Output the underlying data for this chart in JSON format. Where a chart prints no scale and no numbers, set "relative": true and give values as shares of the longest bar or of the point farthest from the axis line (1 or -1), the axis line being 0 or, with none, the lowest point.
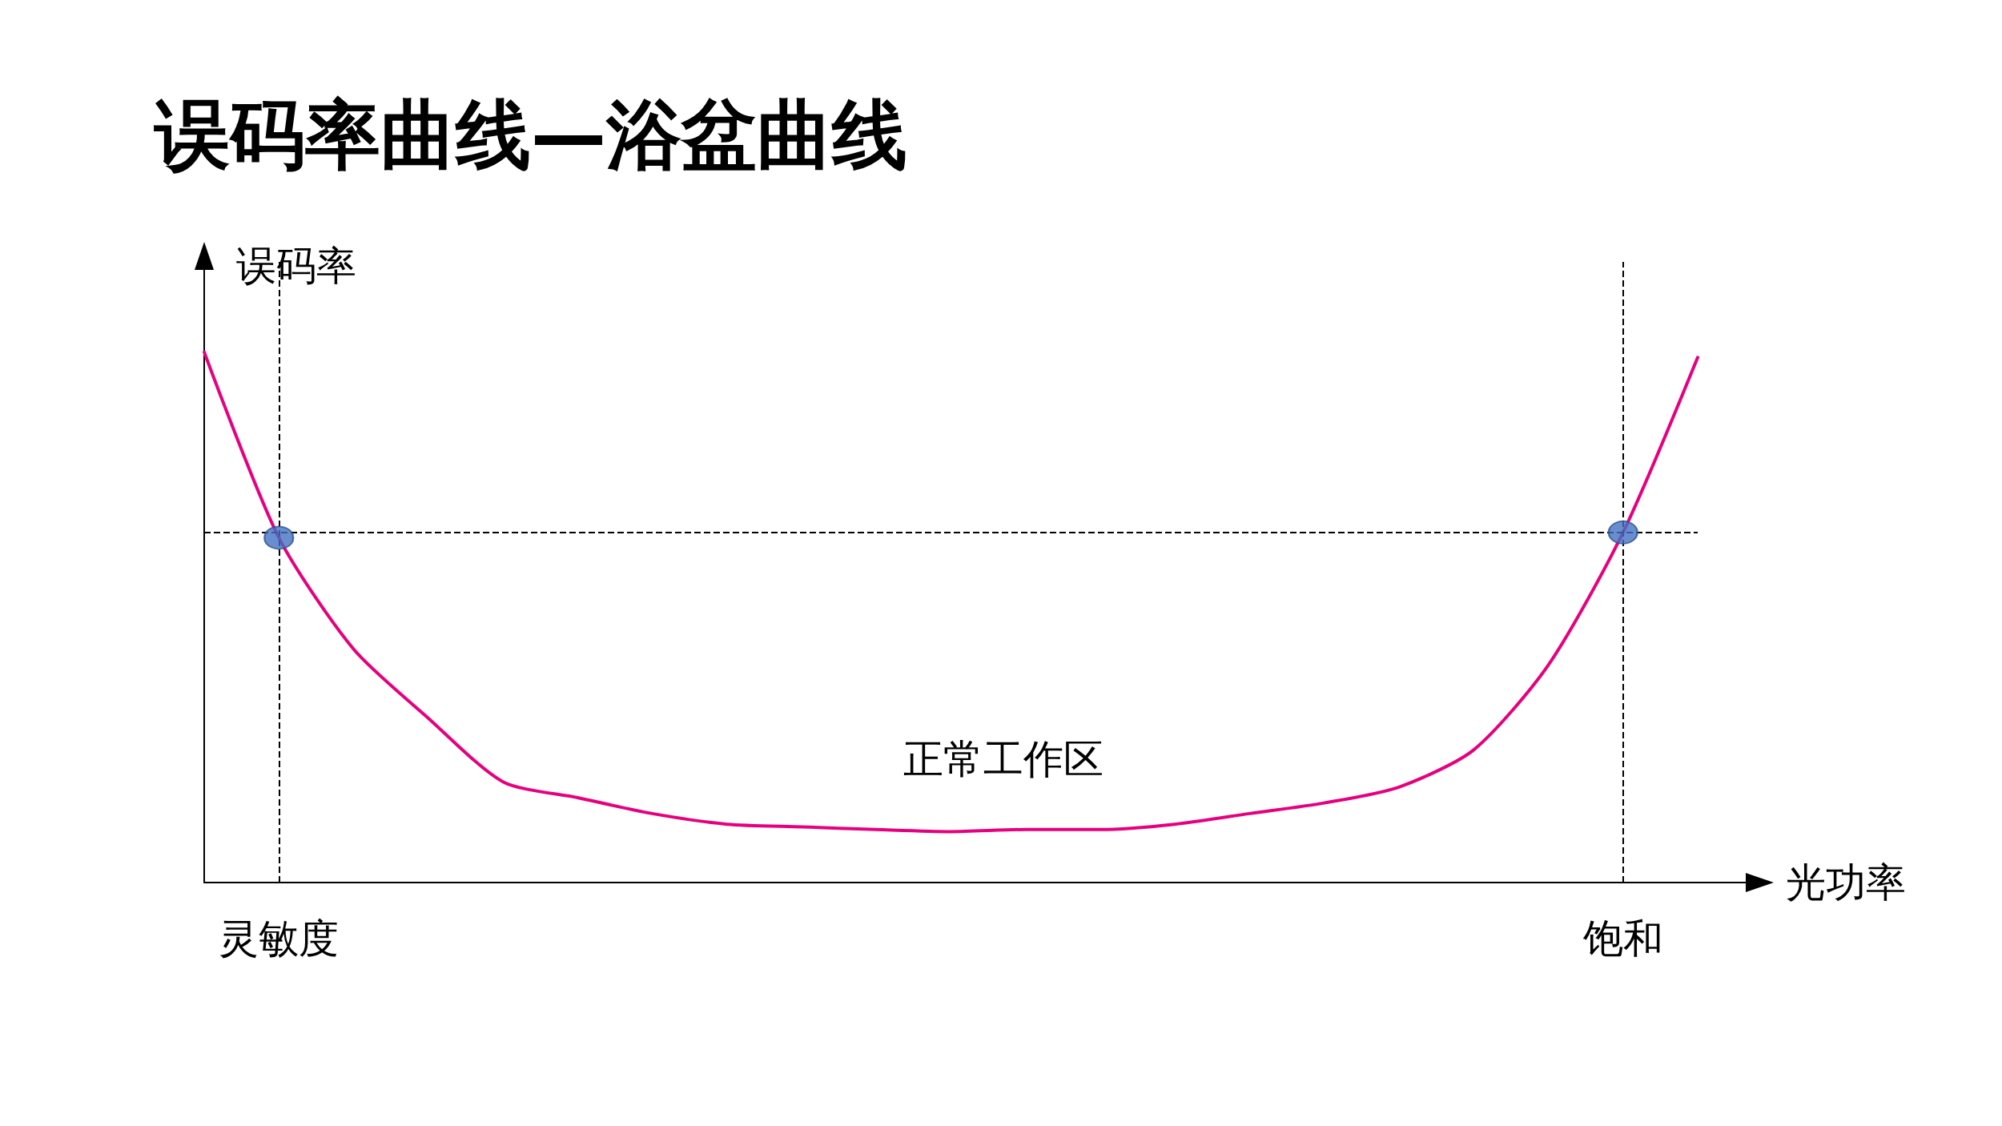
{
  "chart_data": {
    "type": "line",
    "title": "误码率曲线—浴盆曲线",
    "xlabel": "光功率",
    "ylabel": "误码率",
    "relative": true,
    "categories": [
      null,
      "灵敏度",
      null,
      null,
      null,
      null,
      null,
      null,
      null,
      null,
      null,
      null,
      null,
      null,
      null,
      null,
      null,
      null,
      null,
      "饱和",
      null
    ],
    "series": [
      {
        "type": "line",
        "color": "#e6007e",
        "marker": "none",
        "line_style": "solid",
        "values": [
          1.0,
          0.65,
          0.44,
          0.31,
          0.19,
          0.16,
          0.13,
          0.11,
          0.105,
          0.1,
          0.096,
          0.1,
          0.1,
          0.11,
          0.13,
          0.15,
          0.18,
          0.25,
          0.41,
          0.66,
          0.99
        ]
      },
      {
        "type": "scatter",
        "color": "#4472c4",
        "marker": "circle",
        "x": [
          "灵敏度",
          "饱和"
        ],
        "values": [
          0.65,
          0.66
        ]
      }
    ],
    "ref_lines": [
      {
        "axis": "y",
        "value": 0.66,
        "color": "#000000",
        "line_style": "dashed"
      },
      {
        "axis": "x",
        "value": "灵敏度",
        "color": "#000000",
        "line_style": "dashed"
      },
      {
        "axis": "x",
        "value": "饱和",
        "color": "#000000",
        "line_style": "dashed"
      }
    ],
    "annotations": [
      "正常工作区"
    ],
    "grid": false,
    "tick_labels": "x"
  }
}
